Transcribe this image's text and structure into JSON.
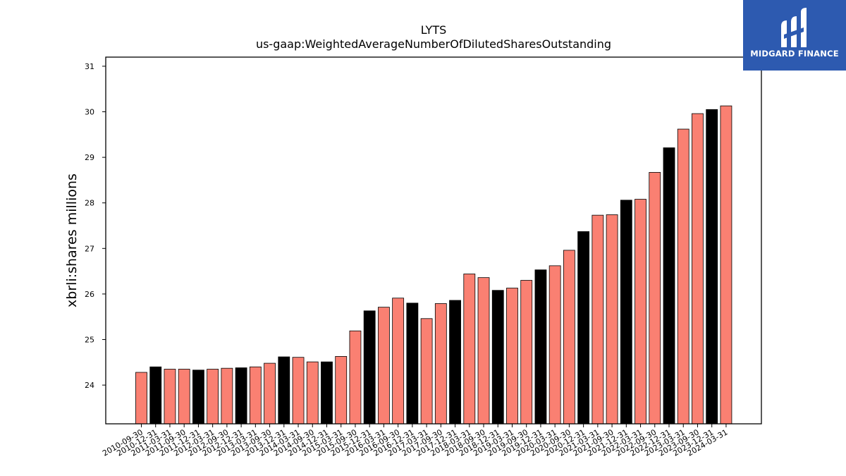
{
  "chart_data": {
    "type": "bar",
    "title": "LYTS",
    "subtitle": "us-gaap:WeightedAverageNumberOfDilutedSharesOutstanding",
    "xlabel": "",
    "ylabel": "xbrli:shares millions",
    "ylim": [
      23.15,
      31.2
    ],
    "yticks": [
      24,
      25,
      26,
      27,
      28,
      29,
      30,
      31
    ],
    "grid": false,
    "colors": {
      "quarter": "#fa8072",
      "q4": "#000000",
      "edge": "#000000"
    },
    "categories": [
      "2010-09-30",
      "2010-12-31",
      "2011-03-31",
      "2011-09-30",
      "2011-12-31",
      "2012-03-31",
      "2012-09-30",
      "2012-12-31",
      "2013-03-31",
      "2013-09-30",
      "2013-12-31",
      "2014-03-31",
      "2014-09-30",
      "2014-12-31",
      "2015-03-31",
      "2015-09-30",
      "2015-12-31",
      "2016-03-31",
      "2016-09-30",
      "2016-12-31",
      "2017-03-31",
      "2017-09-30",
      "2017-12-31",
      "2018-03-31",
      "2018-09-30",
      "2018-12-31",
      "2019-03-31",
      "2019-09-30",
      "2019-12-31",
      "2020-03-31",
      "2020-09-30",
      "2020-12-31",
      "2021-03-31",
      "2021-09-30",
      "2021-12-31",
      "2022-03-31",
      "2022-09-30",
      "2022-12-31",
      "2023-03-31",
      "2023-09-30",
      "2023-12-31",
      "2024-03-31"
    ],
    "values": [
      24.28,
      24.4,
      24.35,
      24.35,
      24.33,
      24.35,
      24.37,
      24.38,
      24.4,
      24.48,
      24.62,
      24.61,
      24.51,
      24.51,
      24.63,
      25.19,
      25.63,
      25.71,
      25.91,
      25.8,
      25.46,
      25.79,
      25.86,
      26.44,
      26.36,
      26.08,
      26.13,
      26.3,
      26.53,
      26.62,
      26.96,
      27.37,
      27.73,
      27.74,
      28.06,
      28.08,
      28.67,
      29.21,
      29.62,
      29.96,
      30.05,
      30.13
    ],
    "highlight": [
      "other",
      "q4",
      "other",
      "other",
      "q4",
      "other",
      "other",
      "q4",
      "other",
      "other",
      "q4",
      "other",
      "other",
      "q4",
      "other",
      "other",
      "q4",
      "other",
      "other",
      "q4",
      "other",
      "other",
      "q4",
      "other",
      "other",
      "q4",
      "other",
      "other",
      "q4",
      "other",
      "other",
      "q4",
      "other",
      "other",
      "q4",
      "other",
      "other",
      "q4",
      "other",
      "other",
      "q4",
      "other"
    ]
  },
  "logo": {
    "text": "MIDGARD FINANCE"
  }
}
